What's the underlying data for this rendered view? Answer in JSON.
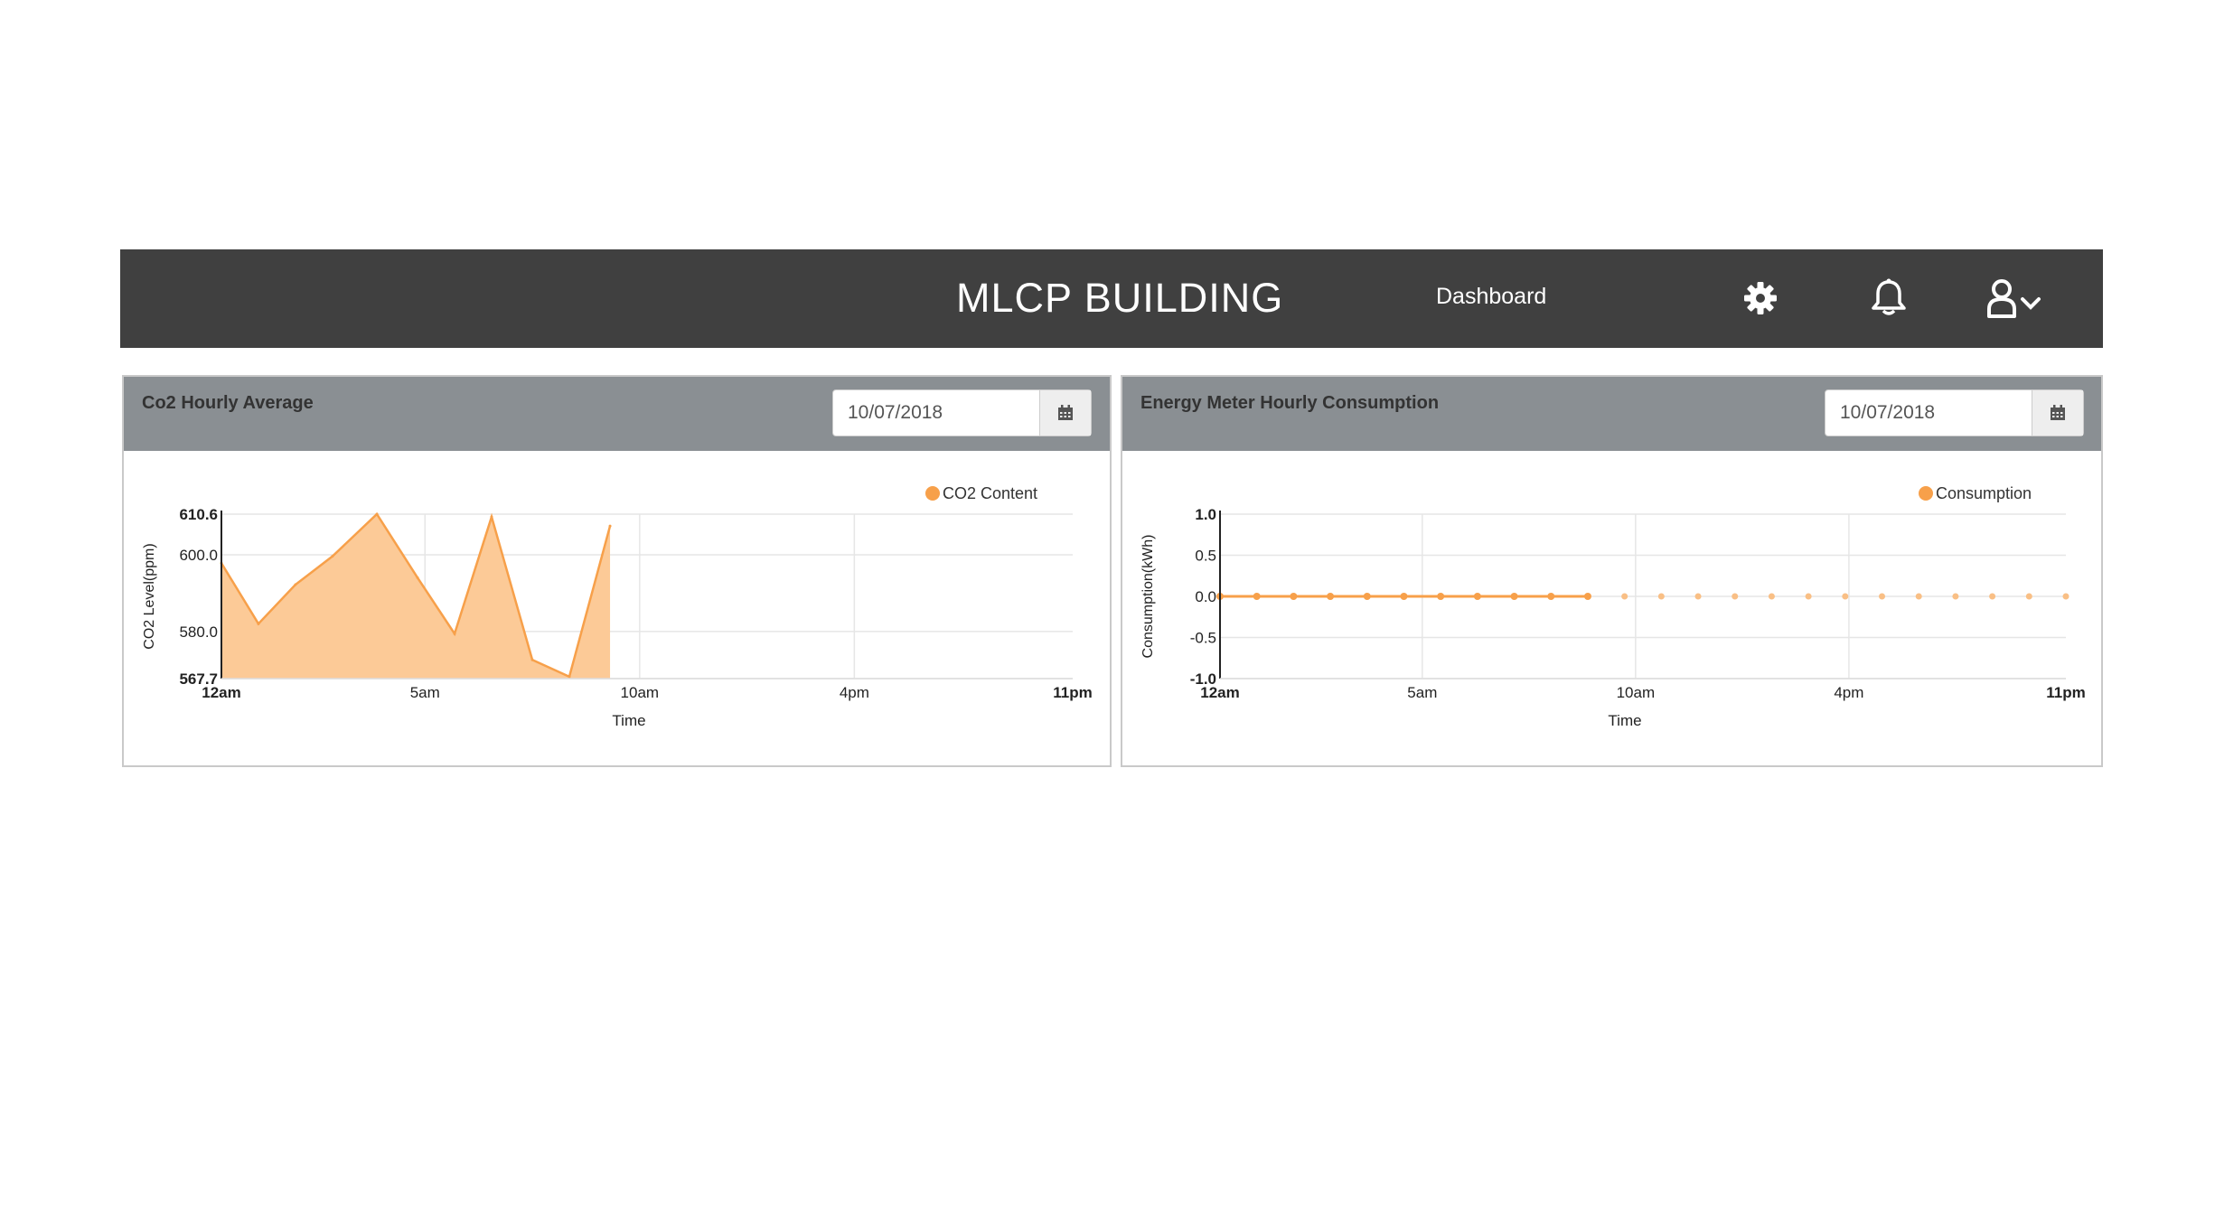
{
  "header": {
    "title": "MLCP BUILDING",
    "nav_link": "Dashboard",
    "icons": [
      "gear-icon",
      "bell-icon",
      "user-icon",
      "chevron-down-icon"
    ]
  },
  "colors": {
    "navbar": "#404040",
    "panel_header": "#8a8f93",
    "accent": "#f7a04a",
    "area_fill": "#fcca97"
  },
  "panels": [
    {
      "title": "Co2 Hourly Average",
      "date": "10/07/2018",
      "chart_data": {
        "type": "area",
        "legend": "CO2 Content",
        "legend_position": "top-right",
        "xlabel": "Time",
        "ylabel": "CO2 Level(ppm)",
        "ylim": [
          567.7,
          610.6
        ],
        "yticks": [
          {
            "v": 610.6,
            "label": "610.6",
            "bold": true
          },
          {
            "v": 600.0,
            "label": "600.0",
            "bold": false
          },
          {
            "v": 580.0,
            "label": "580.0",
            "bold": false
          },
          {
            "v": 567.7,
            "label": "567.7",
            "bold": true
          }
        ],
        "xlim": [
          0,
          23
        ],
        "xticks": [
          {
            "v": 0,
            "label": "12am",
            "bold": true
          },
          {
            "v": 5.5,
            "label": "5am",
            "bold": false
          },
          {
            "v": 11.3,
            "label": "10am",
            "bold": false
          },
          {
            "v": 17.1,
            "label": "4pm",
            "bold": false
          },
          {
            "v": 23,
            "label": "11pm",
            "bold": true
          }
        ],
        "grid": true,
        "series": [
          {
            "name": "CO2 Content",
            "x": [
              0,
              1,
              2,
              3,
              4.2,
              5.3,
              6.3,
              7.3,
              8.4,
              9.4,
              10.5
            ],
            "y": [
              597.8,
              582.0,
              592.2,
              599.6,
              610.6,
              594.0,
              579.4,
              609.9,
              572.6,
              568.2,
              607.5
            ]
          }
        ]
      }
    },
    {
      "title": "Energy Meter Hourly Consumption",
      "date": "10/07/2018",
      "chart_data": {
        "type": "line",
        "legend": "Consumption",
        "legend_position": "top-right",
        "xlabel": "Time",
        "ylabel": "Consumption(kWh)",
        "ylim": [
          -1.0,
          1.0
        ],
        "yticks": [
          {
            "v": 1.0,
            "label": "1.0",
            "bold": true
          },
          {
            "v": 0.5,
            "label": "0.5",
            "bold": false
          },
          {
            "v": 0.0,
            "label": "0.0",
            "bold": false
          },
          {
            "v": -0.5,
            "label": "-0.5",
            "bold": false
          },
          {
            "v": -1.0,
            "label": "-1.0",
            "bold": true
          }
        ],
        "xlim": [
          0,
          23
        ],
        "xticks": [
          {
            "v": 0,
            "label": "12am",
            "bold": true
          },
          {
            "v": 5.5,
            "label": "5am",
            "bold": false
          },
          {
            "v": 11.3,
            "label": "10am",
            "bold": false
          },
          {
            "v": 17.1,
            "label": "4pm",
            "bold": false
          },
          {
            "v": 23,
            "label": "11pm",
            "bold": true
          }
        ],
        "grid": true,
        "series": [
          {
            "name": "Consumption",
            "x": [
              0,
              1,
              2,
              3,
              4,
              5,
              6,
              7,
              8,
              9,
              10,
              11,
              12,
              13,
              14,
              15,
              16,
              17,
              18,
              19,
              20,
              21,
              22,
              23
            ],
            "y": [
              0,
              0,
              0,
              0,
              0,
              0,
              0,
              0,
              0,
              0,
              0,
              0,
              0,
              0,
              0,
              0,
              0,
              0,
              0,
              0,
              0,
              0,
              0,
              0
            ],
            "line_until_index": 10
          }
        ]
      }
    }
  ]
}
